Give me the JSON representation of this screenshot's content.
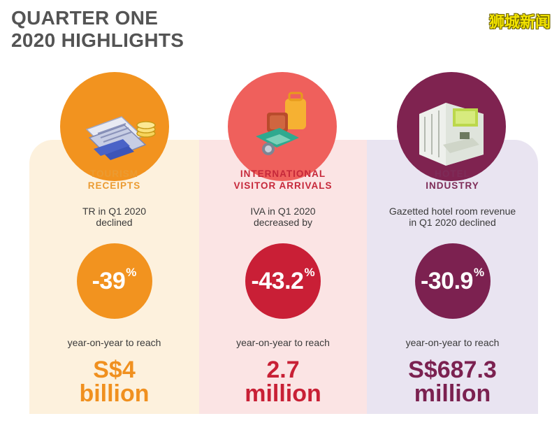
{
  "title": {
    "line1": "QUARTER ONE",
    "line2": "2020 HIGHLIGHTS"
  },
  "watermark": "狮城新闻",
  "colors": {
    "orange": "#f2931f",
    "red": "#c91f36",
    "plum": "#7c2150"
  },
  "columns": [
    {
      "icon": "tickets-and-coins-icon",
      "category_line1": "TOURISM",
      "category_line2": "RECEIPTS",
      "desc_line1": "TR in Q1 2020",
      "desc_line2": "declined",
      "percent": "-39",
      "percent_sign": "%",
      "reach": "year-on-year to reach",
      "value_line1": "S$4",
      "value_line2": "billion"
    },
    {
      "icon": "luggage-and-map-icon",
      "category_line1": "INTERNATIONAL",
      "category_line2": "VISITOR ARRIVALS",
      "desc_line1": "IVA in Q1 2020",
      "desc_line2": "decreased by",
      "percent": "-43.2",
      "percent_sign": "%",
      "reach": "year-on-year to reach",
      "value_line1": "2.7",
      "value_line2": "million"
    },
    {
      "icon": "hotel-lobby-icon",
      "category_line1": "HOTEL",
      "category_line2": "INDUSTRY",
      "desc_line1": "Gazetted hotel room revenue",
      "desc_line2": "in Q1 2020 declined",
      "percent": "-30.9",
      "percent_sign": "%",
      "reach": "year-on-year to reach",
      "value_line1": "S$687.3",
      "value_line2": "million"
    }
  ]
}
